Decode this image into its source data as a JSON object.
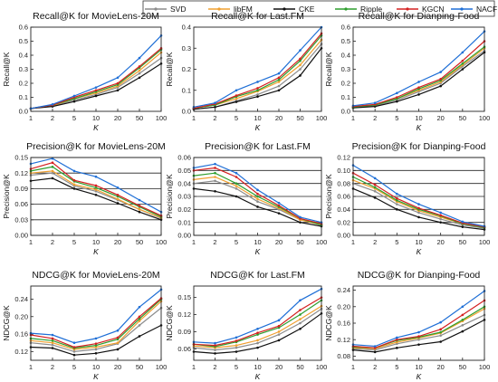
{
  "legend": {
    "entries": [
      {
        "name": "SVD",
        "color": "#8c8c8c"
      },
      {
        "name": "libFM",
        "color": "#f0a030"
      },
      {
        "name": "CKE",
        "color": "#111111"
      },
      {
        "name": "Ripple",
        "color": "#2e9e2e"
      },
      {
        "name": "KGCN",
        "color": "#d42020"
      },
      {
        "name": "NACF",
        "color": "#1f6fd6"
      }
    ]
  },
  "chart_data": [
    {
      "type": "line",
      "title": "Recall@K for MovieLens-20M",
      "xlabel": "K",
      "ylabel": "Recall@K",
      "categories": [
        "1",
        "2",
        "5",
        "10",
        "20",
        "50",
        "100"
      ],
      "ylim": [
        0,
        0.6
      ],
      "yticks": [
        "0.0",
        "0.1",
        "0.2",
        "0.3",
        "0.4",
        "0.5",
        "0.6"
      ],
      "grid": false,
      "series": [
        {
          "name": "SVD",
          "values": [
            0.02,
            0.04,
            0.08,
            0.12,
            0.17,
            0.27,
            0.38
          ]
        },
        {
          "name": "libFM",
          "values": [
            0.02,
            0.04,
            0.09,
            0.13,
            0.18,
            0.29,
            0.42
          ]
        },
        {
          "name": "CKE",
          "values": [
            0.02,
            0.035,
            0.07,
            0.11,
            0.15,
            0.24,
            0.34
          ]
        },
        {
          "name": "Ripple",
          "values": [
            0.02,
            0.045,
            0.09,
            0.14,
            0.19,
            0.31,
            0.44
          ]
        },
        {
          "name": "KGCN",
          "values": [
            0.02,
            0.045,
            0.1,
            0.15,
            0.2,
            0.32,
            0.45
          ]
        },
        {
          "name": "NACF",
          "values": [
            0.02,
            0.05,
            0.11,
            0.17,
            0.24,
            0.38,
            0.54
          ]
        }
      ]
    },
    {
      "type": "line",
      "title": "Recall@K for Last.FM",
      "xlabel": "K",
      "ylabel": "Recall@K",
      "categories": [
        "1",
        "2",
        "5",
        "10",
        "20",
        "50",
        "100"
      ],
      "ylim": [
        0,
        0.4
      ],
      "yticks": [
        "0.0",
        "0.1",
        "0.2",
        "0.3",
        "0.4"
      ],
      "grid": false,
      "series": [
        {
          "name": "SVD",
          "values": [
            0.01,
            0.02,
            0.05,
            0.08,
            0.12,
            0.2,
            0.32
          ]
        },
        {
          "name": "libFM",
          "values": [
            0.015,
            0.03,
            0.06,
            0.095,
            0.14,
            0.22,
            0.34
          ]
        },
        {
          "name": "CKE",
          "values": [
            0.01,
            0.02,
            0.045,
            0.07,
            0.1,
            0.17,
            0.3
          ]
        },
        {
          "name": "Ripple",
          "values": [
            0.015,
            0.03,
            0.07,
            0.1,
            0.15,
            0.24,
            0.36
          ]
        },
        {
          "name": "KGCN",
          "values": [
            0.015,
            0.035,
            0.075,
            0.11,
            0.16,
            0.25,
            0.37
          ]
        },
        {
          "name": "NACF",
          "values": [
            0.02,
            0.04,
            0.1,
            0.14,
            0.18,
            0.29,
            0.4
          ]
        }
      ]
    },
    {
      "type": "line",
      "title": "Recall@K for Dianping-Food",
      "xlabel": "K",
      "ylabel": "Recall@K",
      "categories": [
        "1",
        "2",
        "5",
        "10",
        "20",
        "50",
        "100"
      ],
      "ylim": [
        0,
        0.6
      ],
      "yticks": [
        "0.0",
        "0.1",
        "0.2",
        "0.3",
        "0.4",
        "0.5",
        "0.6"
      ],
      "grid": false,
      "series": [
        {
          "name": "SVD",
          "values": [
            0.03,
            0.04,
            0.08,
            0.14,
            0.2,
            0.32,
            0.43
          ]
        },
        {
          "name": "libFM",
          "values": [
            0.03,
            0.045,
            0.09,
            0.15,
            0.21,
            0.33,
            0.45
          ]
        },
        {
          "name": "CKE",
          "values": [
            0.025,
            0.035,
            0.07,
            0.12,
            0.18,
            0.3,
            0.42
          ]
        },
        {
          "name": "Ripple",
          "values": [
            0.03,
            0.045,
            0.09,
            0.16,
            0.22,
            0.34,
            0.46
          ]
        },
        {
          "name": "KGCN",
          "values": [
            0.035,
            0.05,
            0.1,
            0.17,
            0.23,
            0.36,
            0.5
          ]
        },
        {
          "name": "NACF",
          "values": [
            0.04,
            0.06,
            0.13,
            0.21,
            0.28,
            0.42,
            0.57
          ]
        }
      ]
    },
    {
      "type": "line",
      "title": "Precision@K for MovieLens-20M",
      "xlabel": "K",
      "ylabel": "Precision@K",
      "categories": [
        "1",
        "2",
        "5",
        "10",
        "20",
        "50",
        "100"
      ],
      "ylim": [
        0,
        0.15
      ],
      "yticks": [
        "0.00",
        "0.03",
        "0.06",
        "0.09",
        "0.12",
        "0.15"
      ],
      "grid": true,
      "series": [
        {
          "name": "SVD",
          "values": [
            0.116,
            0.12,
            0.095,
            0.085,
            0.068,
            0.05,
            0.033
          ]
        },
        {
          "name": "libFM",
          "values": [
            0.12,
            0.124,
            0.098,
            0.088,
            0.07,
            0.05,
            0.034
          ]
        },
        {
          "name": "CKE",
          "values": [
            0.105,
            0.11,
            0.09,
            0.078,
            0.062,
            0.045,
            0.03
          ]
        },
        {
          "name": "Ripple",
          "values": [
            0.124,
            0.132,
            0.104,
            0.092,
            0.075,
            0.055,
            0.036
          ]
        },
        {
          "name": "KGCN",
          "values": [
            0.128,
            0.14,
            0.106,
            0.096,
            0.078,
            0.057,
            0.038
          ]
        },
        {
          "name": "NACF",
          "values": [
            0.138,
            0.148,
            0.124,
            0.113,
            0.092,
            0.068,
            0.045
          ]
        }
      ]
    },
    {
      "type": "line",
      "title": "Precision@K for Last.FM",
      "xlabel": "K",
      "ylabel": "Precision@K",
      "categories": [
        "1",
        "2",
        "5",
        "10",
        "20",
        "50",
        "100"
      ],
      "ylim": [
        0,
        0.06
      ],
      "yticks": [
        "0.00",
        "0.01",
        "0.02",
        "0.03",
        "0.04",
        "0.05",
        "0.06"
      ],
      "grid": true,
      "series": [
        {
          "name": "SVD",
          "values": [
            0.04,
            0.042,
            0.036,
            0.026,
            0.02,
            0.012,
            0.008
          ]
        },
        {
          "name": "libFM",
          "values": [
            0.043,
            0.045,
            0.038,
            0.028,
            0.021,
            0.012,
            0.008
          ]
        },
        {
          "name": "CKE",
          "values": [
            0.036,
            0.034,
            0.03,
            0.022,
            0.017,
            0.01,
            0.007
          ]
        },
        {
          "name": "Ripple",
          "values": [
            0.046,
            0.048,
            0.04,
            0.03,
            0.022,
            0.013,
            0.008
          ]
        },
        {
          "name": "KGCN",
          "values": [
            0.05,
            0.052,
            0.045,
            0.032,
            0.023,
            0.013,
            0.009
          ]
        },
        {
          "name": "NACF",
          "values": [
            0.052,
            0.055,
            0.048,
            0.035,
            0.025,
            0.014,
            0.01
          ]
        }
      ]
    },
    {
      "type": "line",
      "title": "Precision@K for Dianping-Food",
      "xlabel": "K",
      "ylabel": "Precision@K",
      "categories": [
        "1",
        "2",
        "5",
        "10",
        "20",
        "50",
        "100"
      ],
      "ylim": [
        0,
        0.12
      ],
      "yticks": [
        "0.00",
        "0.02",
        "0.04",
        "0.06",
        "0.08",
        "0.10",
        "0.12"
      ],
      "grid": true,
      "series": [
        {
          "name": "SVD",
          "values": [
            0.08,
            0.068,
            0.048,
            0.035,
            0.025,
            0.016,
            0.011
          ]
        },
        {
          "name": "libFM",
          "values": [
            0.085,
            0.072,
            0.052,
            0.038,
            0.028,
            0.018,
            0.012
          ]
        },
        {
          "name": "CKE",
          "values": [
            0.072,
            0.058,
            0.04,
            0.028,
            0.02,
            0.013,
            0.009
          ]
        },
        {
          "name": "Ripple",
          "values": [
            0.09,
            0.074,
            0.054,
            0.04,
            0.03,
            0.018,
            0.012
          ]
        },
        {
          "name": "KGCN",
          "values": [
            0.096,
            0.078,
            0.057,
            0.042,
            0.031,
            0.019,
            0.013
          ]
        },
        {
          "name": "NACF",
          "values": [
            0.108,
            0.088,
            0.064,
            0.048,
            0.035,
            0.021,
            0.014
          ]
        }
      ]
    },
    {
      "type": "line",
      "title": "NDCG@K for MovieLens-20M",
      "xlabel": "K",
      "ylabel": "NDCG@K",
      "categories": [
        "1",
        "2",
        "5",
        "10",
        "20",
        "50",
        "100"
      ],
      "ylim": [
        0.1,
        0.27
      ],
      "yticks": [
        "0.12",
        "0.16",
        "0.20",
        "0.24"
      ],
      "grid": false,
      "series": [
        {
          "name": "SVD",
          "values": [
            0.14,
            0.135,
            0.12,
            0.125,
            0.138,
            0.18,
            0.22
          ]
        },
        {
          "name": "libFM",
          "values": [
            0.145,
            0.14,
            0.125,
            0.13,
            0.14,
            0.19,
            0.235
          ]
        },
        {
          "name": "CKE",
          "values": [
            0.13,
            0.128,
            0.112,
            0.116,
            0.125,
            0.155,
            0.18
          ]
        },
        {
          "name": "Ripple",
          "values": [
            0.15,
            0.145,
            0.128,
            0.134,
            0.148,
            0.195,
            0.24
          ]
        },
        {
          "name": "KGCN",
          "values": [
            0.158,
            0.15,
            0.13,
            0.138,
            0.152,
            0.2,
            0.242
          ]
        },
        {
          "name": "NACF",
          "values": [
            0.162,
            0.158,
            0.14,
            0.15,
            0.168,
            0.222,
            0.262
          ]
        }
      ]
    },
    {
      "type": "line",
      "title": "NDCG@K for Last.FM",
      "xlabel": "K",
      "ylabel": "NDCG@K",
      "categories": [
        "1",
        "2",
        "5",
        "10",
        "20",
        "50",
        "100"
      ],
      "ylim": [
        0.04,
        0.17
      ],
      "yticks": [
        "0.06",
        "0.09",
        "0.12",
        "0.15"
      ],
      "grid": false,
      "series": [
        {
          "name": "SVD",
          "values": [
            0.062,
            0.058,
            0.062,
            0.07,
            0.085,
            0.105,
            0.13
          ]
        },
        {
          "name": "libFM",
          "values": [
            0.065,
            0.062,
            0.066,
            0.075,
            0.09,
            0.112,
            0.135
          ]
        },
        {
          "name": "CKE",
          "values": [
            0.055,
            0.052,
            0.055,
            0.062,
            0.075,
            0.095,
            0.122
          ]
        },
        {
          "name": "Ripple",
          "values": [
            0.068,
            0.064,
            0.072,
            0.085,
            0.097,
            0.12,
            0.145
          ]
        },
        {
          "name": "KGCN",
          "values": [
            0.068,
            0.066,
            0.074,
            0.088,
            0.1,
            0.128,
            0.15
          ]
        },
        {
          "name": "NACF",
          "values": [
            0.072,
            0.07,
            0.08,
            0.095,
            0.11,
            0.145,
            0.165
          ]
        }
      ]
    },
    {
      "type": "line",
      "title": "NDCG@K for Dianping-Food",
      "xlabel": "K",
      "ylabel": "NDCG@K",
      "categories": [
        "1",
        "2",
        "5",
        "10",
        "20",
        "50",
        "100"
      ],
      "ylim": [
        0.07,
        0.25
      ],
      "yticks": [
        "0.08",
        "0.12",
        "0.16",
        "0.20",
        "0.24"
      ],
      "grid": false,
      "series": [
        {
          "name": "SVD",
          "values": [
            0.098,
            0.095,
            0.11,
            0.12,
            0.13,
            0.155,
            0.18
          ]
        },
        {
          "name": "libFM",
          "values": [
            0.1,
            0.098,
            0.114,
            0.124,
            0.136,
            0.165,
            0.195
          ]
        },
        {
          "name": "CKE",
          "values": [
            0.095,
            0.09,
            0.1,
            0.108,
            0.115,
            0.14,
            0.168
          ]
        },
        {
          "name": "Ripple",
          "values": [
            0.102,
            0.1,
            0.118,
            0.126,
            0.138,
            0.168,
            0.2
          ]
        },
        {
          "name": "KGCN",
          "values": [
            0.104,
            0.1,
            0.12,
            0.128,
            0.145,
            0.18,
            0.215
          ]
        },
        {
          "name": "NACF",
          "values": [
            0.108,
            0.104,
            0.125,
            0.138,
            0.162,
            0.2,
            0.238
          ]
        }
      ]
    }
  ]
}
